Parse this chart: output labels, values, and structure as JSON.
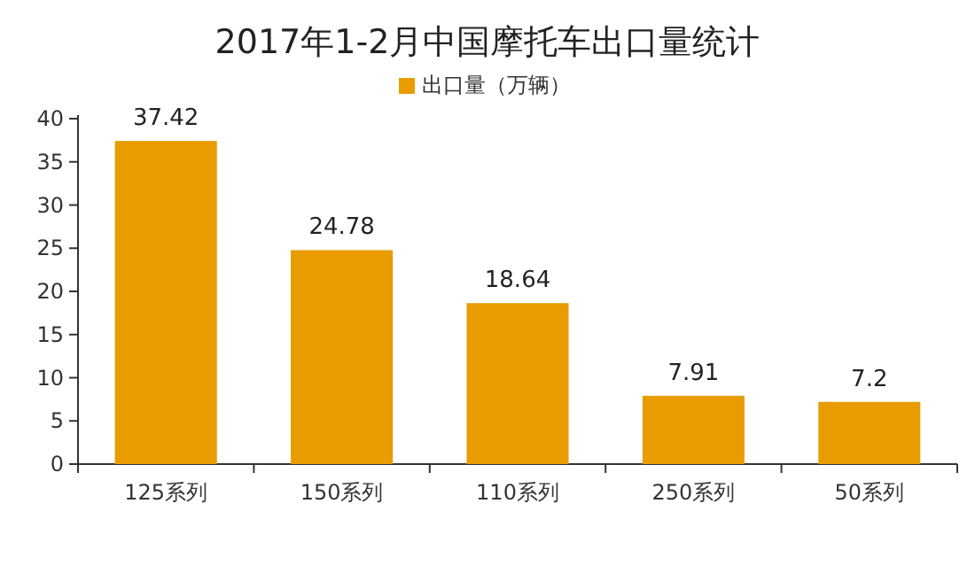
{
  "chart_data": {
    "type": "bar",
    "title": "2017年1-2月中国摩托车出口量统计",
    "categories": [
      "125系列",
      "150系列",
      "110系列",
      "250系列",
      "50系列"
    ],
    "series": [
      {
        "name": "出口量（万辆）",
        "color": "#e89c00",
        "values": [
          37.42,
          24.78,
          18.64,
          7.91,
          7.2
        ]
      }
    ],
    "ylim": [
      0,
      40
    ],
    "yticks": [
      0,
      5,
      10,
      15,
      20,
      25,
      30,
      35,
      40
    ],
    "data_labels": true,
    "legend": "top"
  }
}
